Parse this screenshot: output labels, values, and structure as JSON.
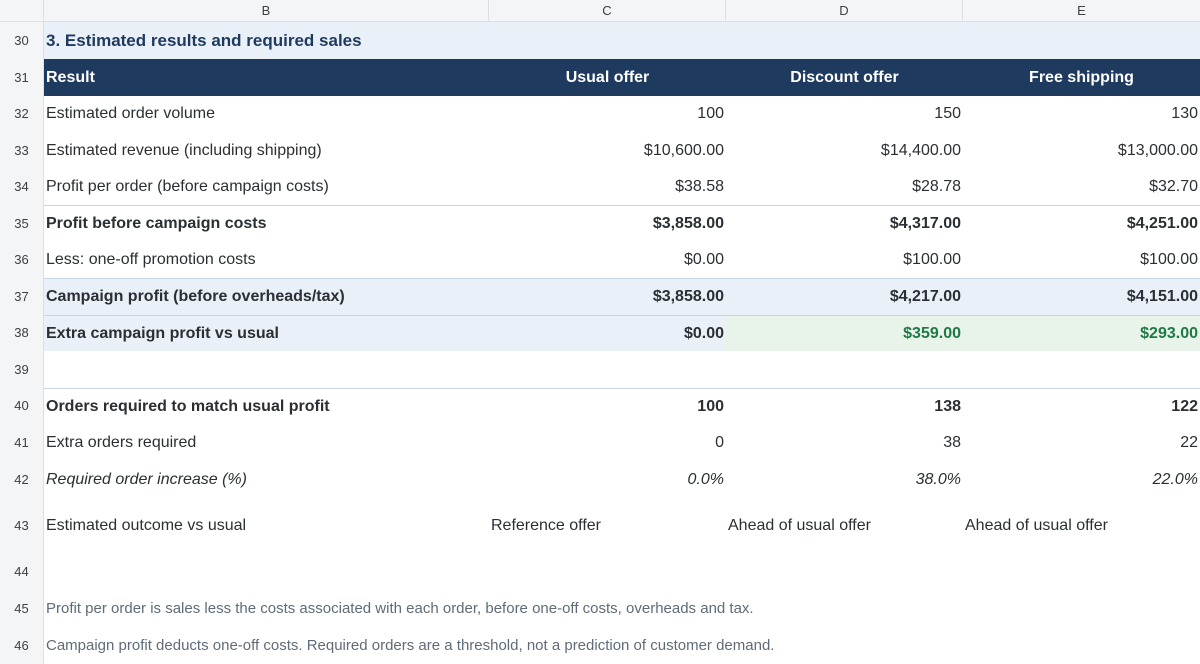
{
  "columns": [
    "B",
    "C",
    "D",
    "E"
  ],
  "rows": [
    {
      "num": "30",
      "type": "title",
      "label": "3. Estimated results and required sales"
    },
    {
      "num": "31",
      "type": "header",
      "label": "Result",
      "c": "Usual offer",
      "d": "Discount offer",
      "e": "Free shipping"
    },
    {
      "num": "32",
      "type": "data",
      "label": "Estimated order volume",
      "c": "100",
      "d": "150",
      "e": "130"
    },
    {
      "num": "33",
      "type": "data",
      "label": "Estimated revenue (including shipping)",
      "c": "$10,600.00",
      "d": "$14,400.00",
      "e": "$13,000.00"
    },
    {
      "num": "34",
      "type": "data",
      "label": "Profit per order (before campaign costs)",
      "c": "$38.58",
      "d": "$28.78",
      "e": "$32.70"
    },
    {
      "num": "35",
      "type": "bold",
      "label": "Profit before campaign costs",
      "c": "$3,858.00",
      "d": "$4,317.00",
      "e": "$4,251.00"
    },
    {
      "num": "36",
      "type": "data",
      "label": "Less: one-off promotion costs",
      "c": "$0.00",
      "d": "$100.00",
      "e": "$100.00"
    },
    {
      "num": "37",
      "type": "band",
      "label": "Campaign profit (before overheads/tax)",
      "c": "$3,858.00",
      "d": "$4,217.00",
      "e": "$4,151.00"
    },
    {
      "num": "38",
      "type": "extra",
      "label": "Extra campaign profit vs usual",
      "c": "$0.00",
      "d": "$359.00",
      "e": "$293.00"
    },
    {
      "num": "39",
      "type": "empty"
    },
    {
      "num": "40",
      "type": "bold",
      "label": "Orders required to match usual profit",
      "c": "100",
      "d": "138",
      "e": "122"
    },
    {
      "num": "41",
      "type": "data",
      "label": "Extra orders required",
      "c": "0",
      "d": "38",
      "e": "22"
    },
    {
      "num": "42",
      "type": "italic",
      "label": "Required order increase (%)",
      "c": "0.0%",
      "d": "38.0%",
      "e": "22.0%"
    },
    {
      "num": "43",
      "type": "outcome",
      "label": "Estimated outcome vs usual",
      "c": "Reference offer",
      "d": "Ahead of usual offer",
      "e": "Ahead of usual offer"
    },
    {
      "num": "44",
      "type": "empty"
    },
    {
      "num": "45",
      "type": "note",
      "label": "Profit per order is sales less the costs associated with each order, before one-off costs, overheads and tax."
    },
    {
      "num": "46",
      "type": "note",
      "label": "Campaign profit deducts one-off costs. Required orders are a threshold, not a prediction of customer demand."
    }
  ],
  "colors": {
    "header": "#1f3a5f",
    "band": "#eaf0f8",
    "positive": "#1e7a45",
    "positive_band": "#e8f3ea"
  }
}
